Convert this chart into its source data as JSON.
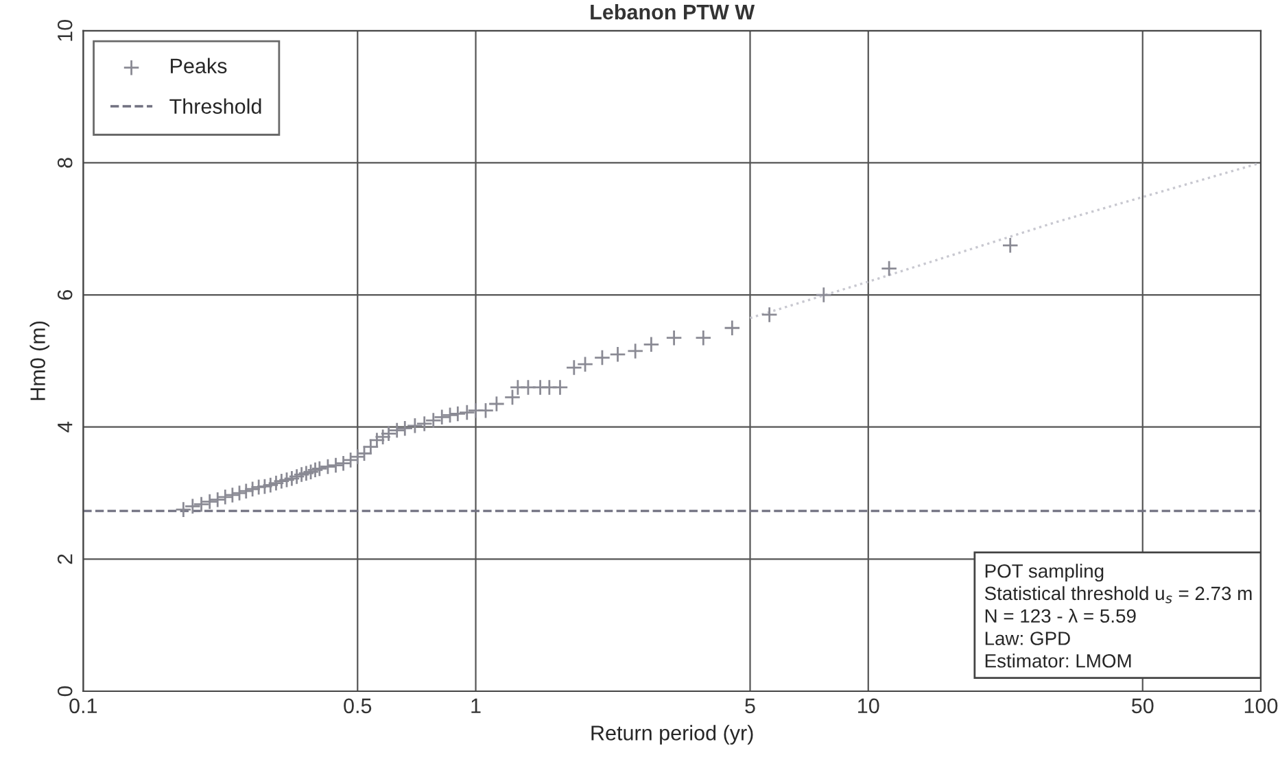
{
  "chart_data": {
    "type": "scatter",
    "title": "Lebanon PTW W",
    "xlabel": "Return period (yr)",
    "ylabel": "Hm0 (m)",
    "log": "x",
    "xlim": [
      0.1,
      100
    ],
    "xticks": [
      0.1,
      0.5,
      1,
      5,
      10,
      50,
      100
    ],
    "ylim": [
      0,
      10
    ],
    "yticks": [
      0,
      2,
      4,
      6,
      8,
      10
    ],
    "grid": true,
    "legend": "top left",
    "series": [
      {
        "name": "Peaks",
        "marker": "cross",
        "color": "#8a8a94",
        "x": [
          0.18,
          0.19,
          0.2,
          0.21,
          0.22,
          0.23,
          0.24,
          0.25,
          0.26,
          0.27,
          0.28,
          0.29,
          0.3,
          0.31,
          0.32,
          0.33,
          0.34,
          0.35,
          0.36,
          0.37,
          0.38,
          0.39,
          0.4,
          0.42,
          0.44,
          0.46,
          0.48,
          0.5,
          0.52,
          0.54,
          0.56,
          0.58,
          0.6,
          0.63,
          0.66,
          0.7,
          0.74,
          0.78,
          0.82,
          0.86,
          0.9,
          0.95,
          1.0,
          1.06,
          1.13,
          1.24,
          1.28,
          1.36,
          1.46,
          1.54,
          1.64,
          1.78,
          1.9,
          2.1,
          2.3,
          2.55,
          2.8,
          3.2,
          3.8,
          4.5,
          5.6,
          7.7,
          11.3,
          23
        ],
        "values": [
          2.75,
          2.8,
          2.83,
          2.87,
          2.9,
          2.94,
          2.97,
          3.0,
          3.03,
          3.06,
          3.09,
          3.1,
          3.12,
          3.15,
          3.18,
          3.2,
          3.22,
          3.25,
          3.28,
          3.3,
          3.32,
          3.35,
          3.37,
          3.4,
          3.42,
          3.45,
          3.5,
          3.55,
          3.6,
          3.7,
          3.8,
          3.85,
          3.9,
          3.95,
          3.98,
          4.02,
          4.05,
          4.1,
          4.15,
          4.18,
          4.2,
          4.22,
          4.25,
          4.25,
          4.35,
          4.45,
          4.6,
          4.6,
          4.6,
          4.6,
          4.6,
          4.9,
          4.95,
          5.05,
          5.1,
          5.15,
          5.25,
          5.35,
          5.35,
          5.5,
          5.7,
          6.0,
          6.4,
          6.75
        ]
      },
      {
        "type": "line",
        "color": "#c8c8d0",
        "x": [
          5,
          10,
          30,
          100
        ],
        "values": [
          5.65,
          6.2,
          7.1,
          8.0
        ],
        "line_style": "dotted"
      },
      {
        "name": "Threshold",
        "type": "line",
        "color": "#707080",
        "x": [
          0.1,
          100
        ],
        "values": [
          2.73,
          2.73
        ],
        "line_style": "dashed"
      }
    ],
    "annotations": [
      "POT sampling",
      "Statistical threshold u$_{s}$ = 2.73 m",
      "N = 123 - λ = 5.59",
      "Law: GPD",
      "Estimator: LMOM"
    ]
  }
}
